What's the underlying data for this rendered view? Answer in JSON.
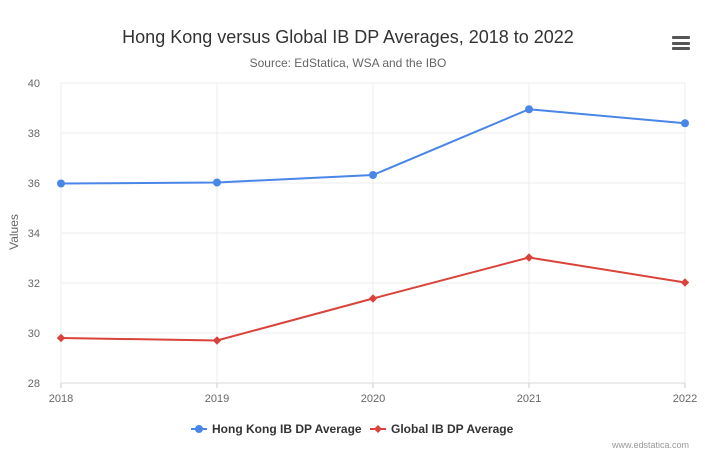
{
  "chart_data": {
    "type": "line",
    "title": "Hong Kong versus Global IB DP Averages, 2018 to 2022",
    "subtitle": "Source: EdStatica, WSA and the IBO",
    "xlabel": "",
    "ylabel": "Values",
    "categories": [
      "2018",
      "2019",
      "2020",
      "2021",
      "2022"
    ],
    "ylim": [
      28,
      40
    ],
    "yticks": [
      28,
      30,
      32,
      34,
      36,
      38,
      40
    ],
    "grid": true,
    "legend_position": "bottom-center",
    "series": [
      {
        "name": "Hong Kong IB DP Average",
        "values": [
          35.98,
          36.02,
          36.32,
          38.95,
          38.39
        ],
        "color": "#4a86e8",
        "marker": "circle"
      },
      {
        "name": "Global IB DP Average",
        "values": [
          29.8,
          29.7,
          31.38,
          33.02,
          32.02
        ],
        "color": "#d9433a",
        "marker": "diamond"
      }
    ]
  },
  "credit": "www.edstatica.com",
  "menu_icon": "hamburger-menu-icon"
}
